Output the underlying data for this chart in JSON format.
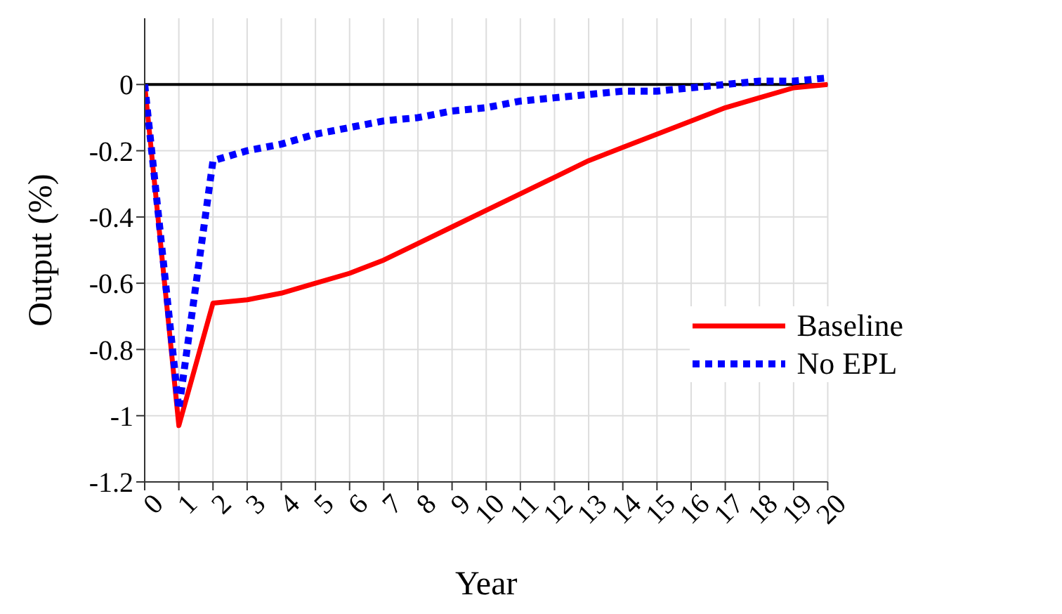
{
  "chart_data": {
    "type": "line",
    "xlabel": "Year",
    "ylabel": "Output (%)",
    "x": [
      0,
      1,
      2,
      3,
      4,
      5,
      6,
      7,
      8,
      9,
      10,
      11,
      12,
      13,
      14,
      15,
      16,
      17,
      18,
      19,
      20
    ],
    "series": [
      {
        "name": "Baseline",
        "color": "#ff0000",
        "line_style": "solid",
        "values": [
          0,
          -1.03,
          -0.66,
          -0.65,
          -0.63,
          -0.6,
          -0.57,
          -0.53,
          -0.48,
          -0.43,
          -0.38,
          -0.33,
          -0.28,
          -0.23,
          -0.19,
          -0.15,
          -0.11,
          -0.07,
          -0.04,
          -0.01,
          0
        ]
      },
      {
        "name": "No EPL",
        "color": "#0000ff",
        "line_style": "dotted",
        "values": [
          0,
          -0.98,
          -0.23,
          -0.2,
          -0.18,
          -0.15,
          -0.13,
          -0.11,
          -0.1,
          -0.08,
          -0.07,
          -0.05,
          -0.04,
          -0.03,
          -0.02,
          -0.02,
          -0.01,
          0,
          0.01,
          0.01,
          0.02
        ]
      }
    ],
    "xlim": [
      0,
      20
    ],
    "xticks": [
      0,
      1,
      2,
      3,
      4,
      5,
      6,
      7,
      8,
      9,
      10,
      11,
      12,
      13,
      14,
      15,
      16,
      17,
      18,
      19,
      20
    ],
    "ylim": [
      -1.2,
      0.2
    ],
    "yticks": [
      -1.2,
      -1,
      -0.8,
      -0.6,
      -0.4,
      -0.2,
      0
    ],
    "ref_lines": [
      {
        "axis": "y",
        "value": 0,
        "color": "#000000"
      }
    ],
    "grid": true,
    "legend": "right",
    "marker": "none"
  }
}
